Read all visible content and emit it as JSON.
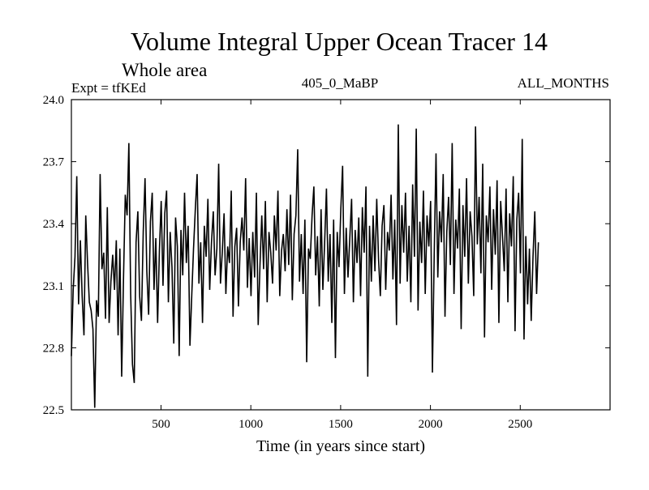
{
  "chart_data": {
    "type": "line",
    "title": "Volume Integral Upper Ocean Tracer 14",
    "subtitle": "Whole area",
    "header_left": "Expt = tfKEd",
    "header_center": "405_0_MaBP",
    "header_right": "ALL_MONTHS",
    "xlabel": "Time (in years since start)",
    "ylabel": "",
    "xlim": [
      1,
      3000
    ],
    "ylim": [
      22.5,
      24.0
    ],
    "x_ticks": [
      500,
      1000,
      1500,
      2000,
      2500
    ],
    "y_ticks": [
      "22.5",
      "22.8",
      "23.1",
      "23.4",
      "23.7",
      "24.0"
    ],
    "grid": false,
    "legend": "none",
    "line_color": "#000000",
    "series": [
      {
        "x_start": 1,
        "x_step": 10,
        "values": [
          22.76,
          23.08,
          23.24,
          23.63,
          23.01,
          23.32,
          23.05,
          22.86,
          23.44,
          23.21,
          23.02,
          22.98,
          22.89,
          22.51,
          23.03,
          22.95,
          23.64,
          23.18,
          23.26,
          22.94,
          23.48,
          22.92,
          23.12,
          23.25,
          23.08,
          23.32,
          22.86,
          23.28,
          22.66,
          23.13,
          23.54,
          23.44,
          23.79,
          23.06,
          22.72,
          22.63,
          23.31,
          23.46,
          23.05,
          22.93,
          23.36,
          23.62,
          23.17,
          22.96,
          23.41,
          23.55,
          23.08,
          23.33,
          22.92,
          23.27,
          23.51,
          23.1,
          23.45,
          23.56,
          23.02,
          23.36,
          23.19,
          22.82,
          23.43,
          23.29,
          22.76,
          23.37,
          23.15,
          23.55,
          23.21,
          23.39,
          22.81,
          23.05,
          23.28,
          23.47,
          23.64,
          23.11,
          23.31,
          22.92,
          23.39,
          23.24,
          23.52,
          23.08,
          23.31,
          23.46,
          23.15,
          23.28,
          23.69,
          23.11,
          23.26,
          23.45,
          23.06,
          23.29,
          23.21,
          23.56,
          22.95,
          23.29,
          23.38,
          23.0,
          23.31,
          23.43,
          23.27,
          23.62,
          23.09,
          23.33,
          23.05,
          23.36,
          23.14,
          23.55,
          22.91,
          23.2,
          23.44,
          23.18,
          23.51,
          23.02,
          23.36,
          23.26,
          23.11,
          23.44,
          23.27,
          23.56,
          23.05,
          23.27,
          23.35,
          23.17,
          23.47,
          23.2,
          23.54,
          23.03,
          23.35,
          23.44,
          23.76,
          23.12,
          23.35,
          23.06,
          23.42,
          22.73,
          23.28,
          23.23,
          23.44,
          23.58,
          23.15,
          23.34,
          23.0,
          23.47,
          23.08,
          23.31,
          23.57,
          23.12,
          23.35,
          22.92,
          23.42,
          22.75,
          23.36,
          23.19,
          23.47,
          23.68,
          23.06,
          23.38,
          23.14,
          23.33,
          23.52,
          23.02,
          23.37,
          23.21,
          23.43,
          23.05,
          23.48,
          23.26,
          23.58,
          22.66,
          23.39,
          23.12,
          23.44,
          23.17,
          23.52,
          23.23,
          23.05,
          23.39,
          23.49,
          23.08,
          23.36,
          23.27,
          23.54,
          23.13,
          23.42,
          22.91,
          23.88,
          23.11,
          23.49,
          23.26,
          23.55,
          23.12,
          23.39,
          23.02,
          23.59,
          23.24,
          23.86,
          22.98,
          23.41,
          23.21,
          23.56,
          23.06,
          23.44,
          23.29,
          23.51,
          22.68,
          23.25,
          23.74,
          23.14,
          23.46,
          23.31,
          23.64,
          22.95,
          23.36,
          23.53,
          23.2,
          23.79,
          23.06,
          23.42,
          23.28,
          23.57,
          22.89,
          23.49,
          23.24,
          23.62,
          23.11,
          23.46,
          23.34,
          23.05,
          23.87,
          23.3,
          23.53,
          23.16,
          23.69,
          22.85,
          23.44,
          23.31,
          23.58,
          23.08,
          23.47,
          23.25,
          23.61,
          22.92,
          23.51,
          23.34,
          23.17,
          23.57,
          23.02,
          23.45,
          23.29,
          23.63,
          22.88,
          23.42,
          23.55,
          23.16,
          23.81,
          22.84,
          23.34,
          23.01,
          23.28,
          22.93,
          23.24,
          23.46,
          23.06,
          23.31
        ]
      }
    ]
  }
}
